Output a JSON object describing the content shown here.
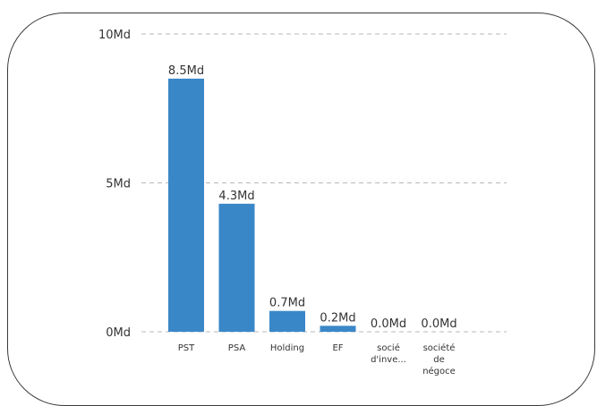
{
  "chart_data": {
    "type": "bar",
    "categories": [
      [
        "PST"
      ],
      [
        "PSA"
      ],
      [
        "Holding"
      ],
      [
        "EF"
      ],
      [
        "socié",
        "d'inve..."
      ],
      [
        "société",
        "de",
        "négoce"
      ]
    ],
    "values": [
      8.5,
      4.3,
      0.7,
      0.2,
      0.0,
      0.0
    ],
    "data_labels": [
      "8.5Md",
      "4.3Md",
      "0.7Md",
      "0.2Md",
      "0.0Md",
      "0.0Md"
    ],
    "unit": "Md",
    "ylim": [
      0,
      10
    ],
    "yticks": [
      {
        "value": 0,
        "label": "0Md"
      },
      {
        "value": 5,
        "label": "5Md"
      },
      {
        "value": 10,
        "label": "10Md"
      }
    ],
    "title": "",
    "xlabel": "",
    "ylabel": "",
    "bar_color": "#3a87c8",
    "grid": true,
    "legend": "none"
  }
}
